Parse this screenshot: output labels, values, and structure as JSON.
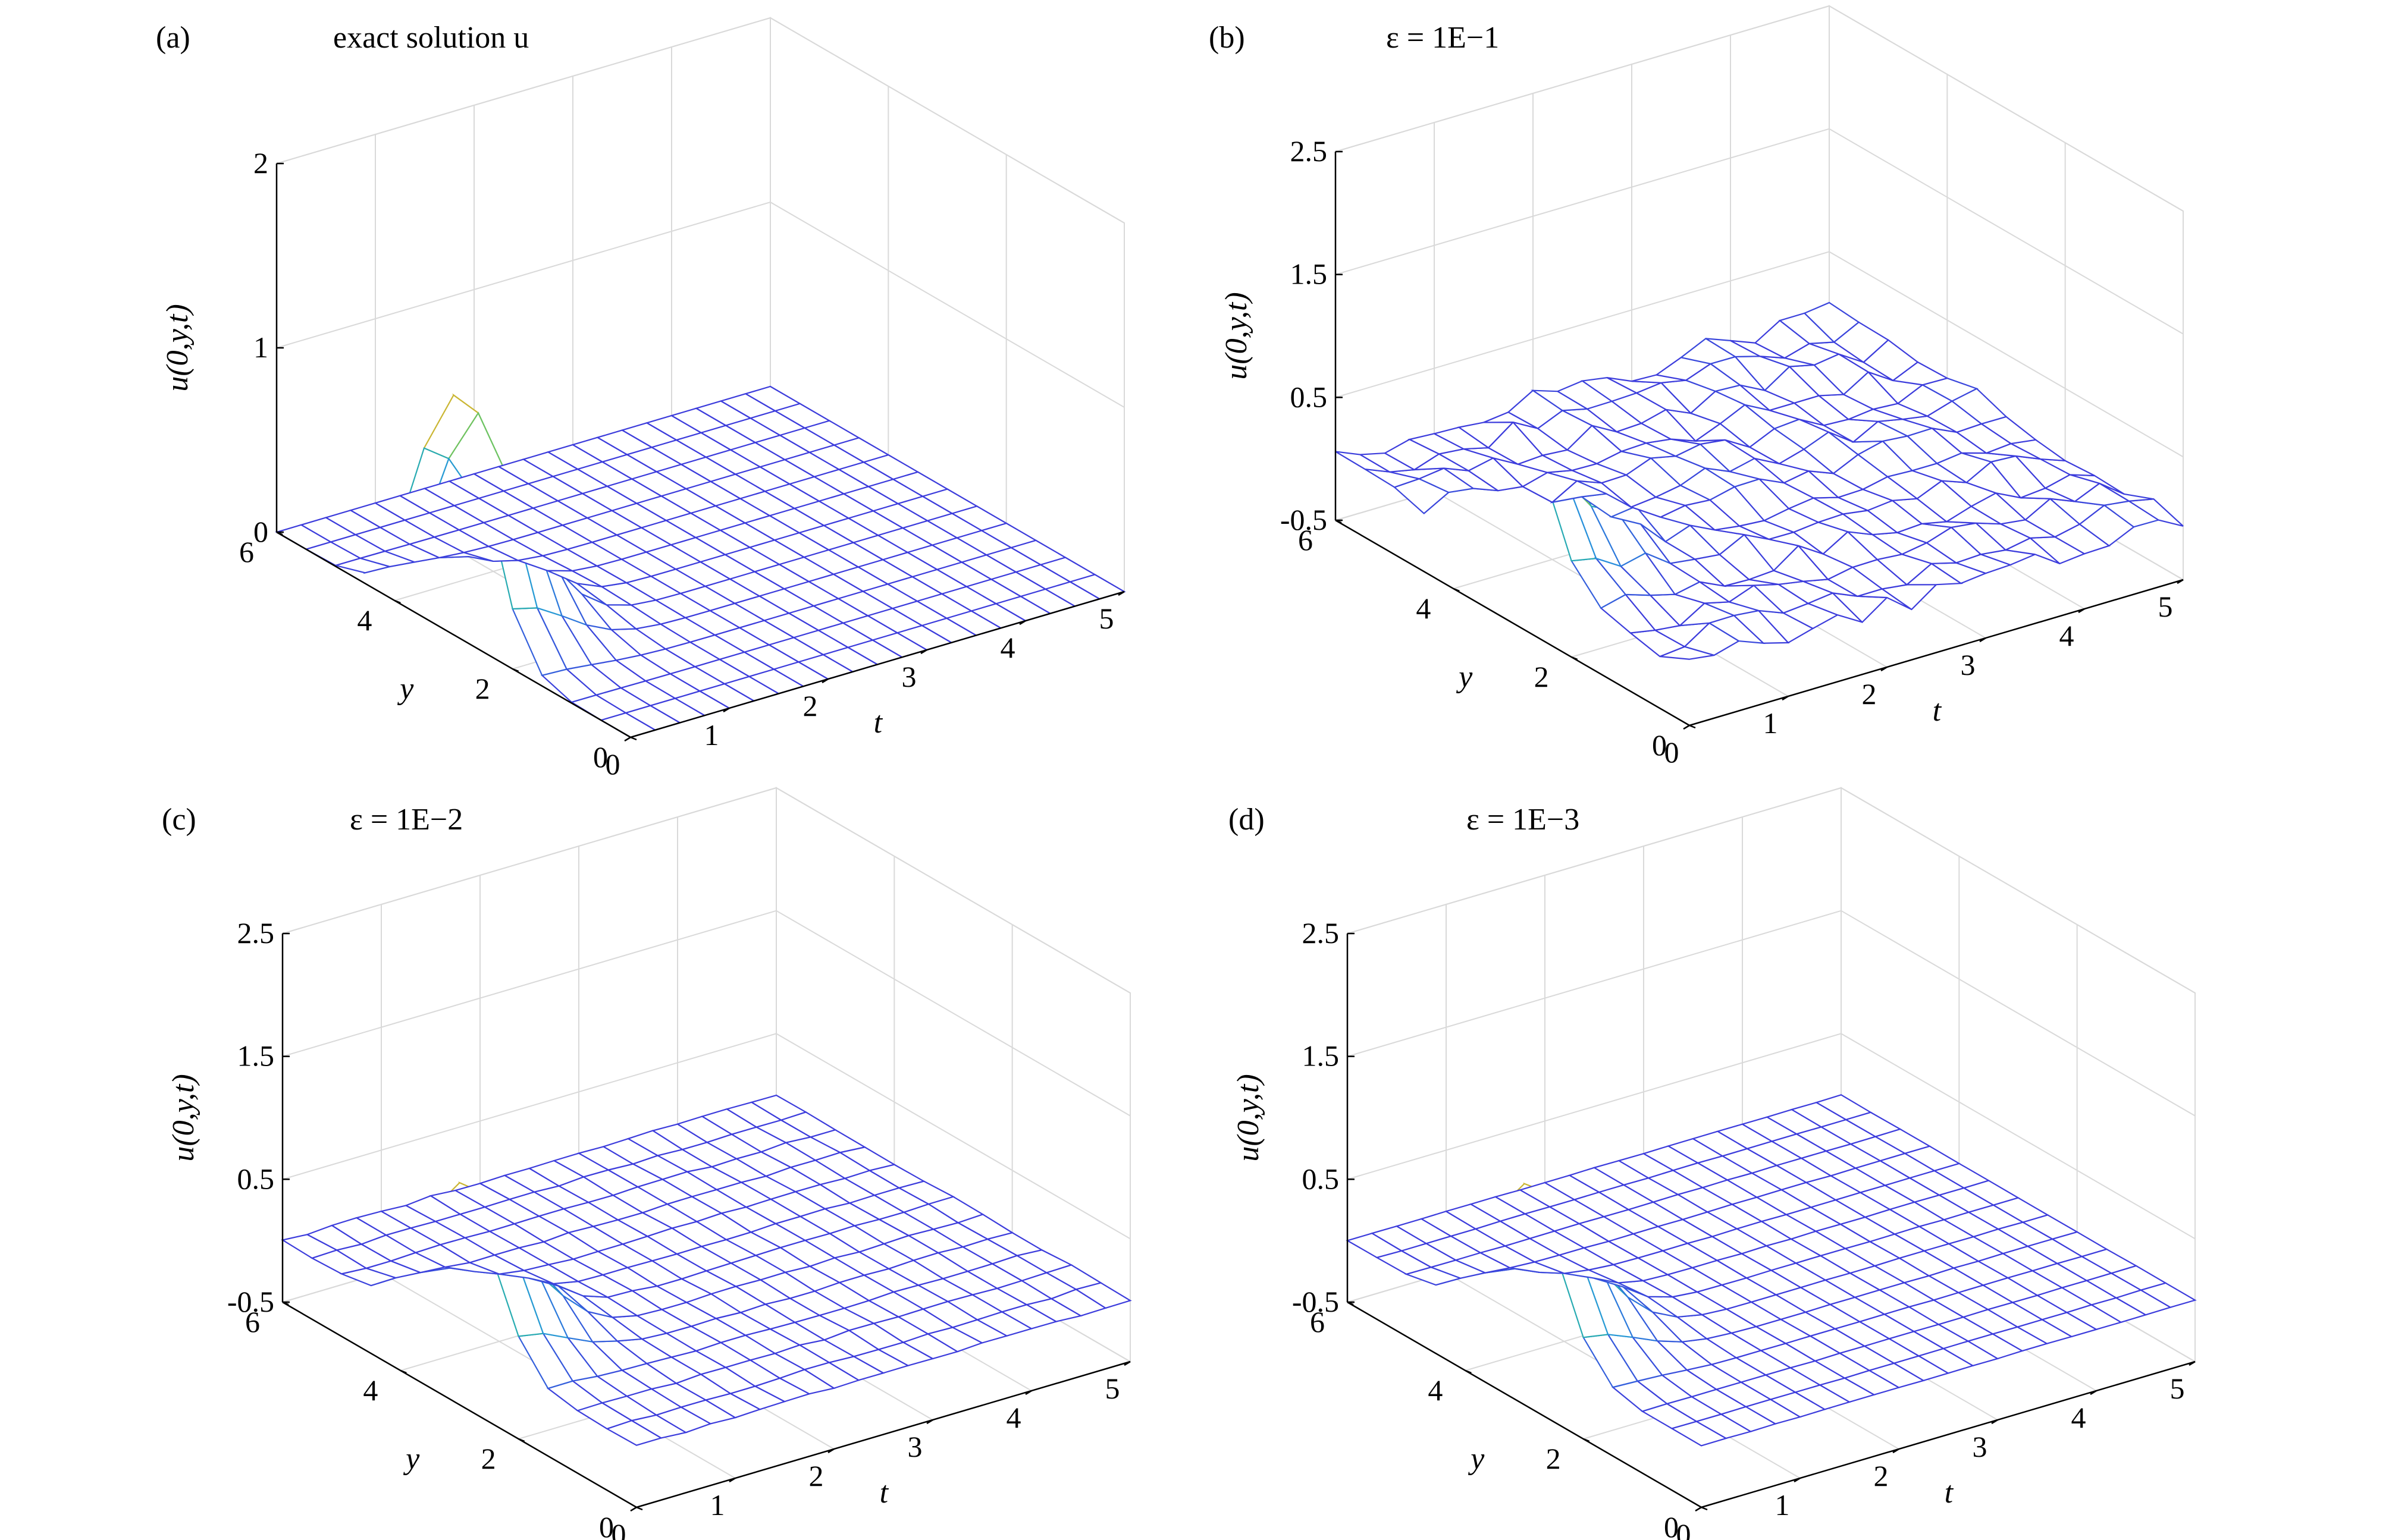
{
  "chart_data": [
    {
      "type": "surface",
      "panel": "(a)",
      "title": "exact solution u",
      "xlabel": "t",
      "ylabel": "y",
      "zlabel": "u(0,y,t)",
      "xlim": [
        0,
        5
      ],
      "ylim": [
        0,
        6
      ],
      "zlim": [
        0,
        2
      ],
      "xticks": [
        0,
        1,
        2,
        3,
        4,
        5
      ],
      "yticks": [
        0,
        2,
        4,
        6
      ],
      "zticks": [
        0,
        1,
        2
      ],
      "surface": {
        "peak_u": 1.3,
        "peak_t": 0,
        "peak_y": 3.0,
        "noise": 0
      },
      "grid": true
    },
    {
      "type": "surface",
      "panel": "(b)",
      "title": "ε = 1E−1",
      "xlabel": "t",
      "ylabel": "y",
      "zlabel": "u(0,y,t)",
      "xlim": [
        0,
        5
      ],
      "ylim": [
        0,
        6
      ],
      "zlim": [
        -0.5,
        2.5
      ],
      "xticks": [
        0,
        1,
        2,
        3,
        4,
        5
      ],
      "yticks": [
        0,
        2,
        4,
        6
      ],
      "zticks": [
        -0.5,
        0.5,
        1.5,
        2.5
      ],
      "surface": {
        "peak_u": 1.2,
        "peak_t": 0,
        "peak_y": 3.0,
        "noise": 0.18
      },
      "grid": true
    },
    {
      "type": "surface",
      "panel": "(c)",
      "title": "ε = 1E−2",
      "xlabel": "t",
      "ylabel": "y",
      "zlabel": "u(0,y,t)",
      "xlim": [
        0,
        5
      ],
      "ylim": [
        0,
        6
      ],
      "zlim": [
        -0.5,
        2.5
      ],
      "xticks": [
        0,
        1,
        2,
        3,
        4,
        5
      ],
      "yticks": [
        0,
        2,
        4,
        6
      ],
      "zticks": [
        -0.5,
        0.5,
        1.5,
        2.5
      ],
      "surface": {
        "peak_u": 1.3,
        "peak_t": 0,
        "peak_y": 3.0,
        "noise": 0.02
      },
      "grid": true
    },
    {
      "type": "surface",
      "panel": "(d)",
      "title": "ε = 1E−3",
      "xlabel": "t",
      "ylabel": "y",
      "zlabel": "u(0,y,t)",
      "xlim": [
        0,
        5
      ],
      "ylim": [
        0,
        6
      ],
      "zlim": [
        -0.5,
        2.5
      ],
      "xticks": [
        0,
        1,
        2,
        3,
        4,
        5
      ],
      "yticks": [
        0,
        2,
        4,
        6
      ],
      "zticks": [
        -0.5,
        0.5,
        1.5,
        2.5
      ],
      "surface": {
        "peak_u": 1.3,
        "peak_t": 0,
        "peak_y": 3.0,
        "noise": 0.005
      },
      "grid": true
    }
  ]
}
